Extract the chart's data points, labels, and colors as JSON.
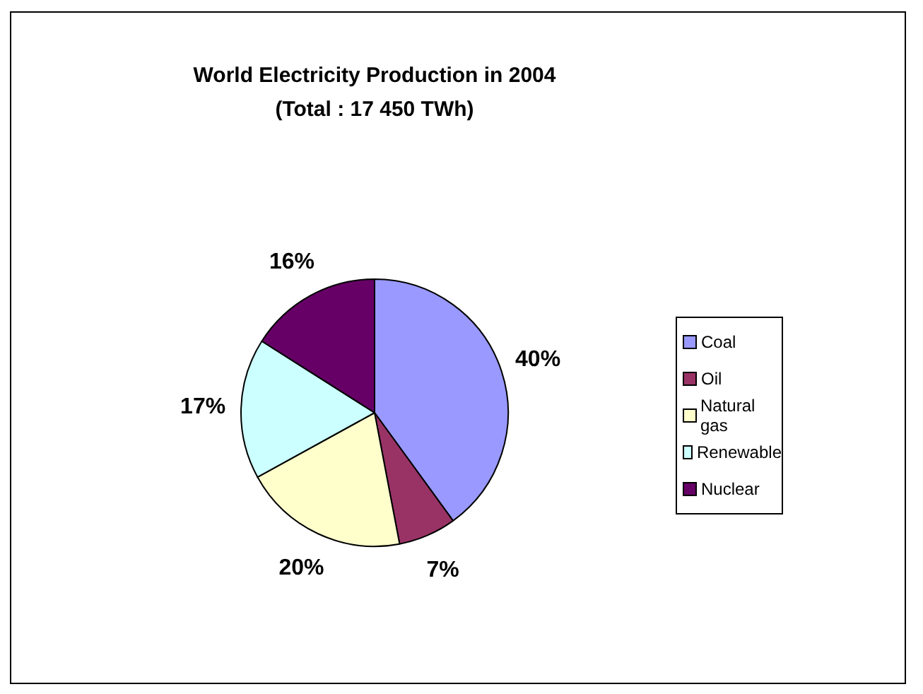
{
  "chart_data": {
    "type": "pie",
    "title": "World Electricity Production in 2004",
    "subtitle": "(Total : 17 450 TWh)",
    "categories": [
      "Coal",
      "Oil",
      "Natural gas",
      "Renewable",
      "Nuclear"
    ],
    "values": [
      40,
      7,
      20,
      17,
      16
    ],
    "value_labels": [
      "40%",
      "7%",
      "20%",
      "17%",
      "16%"
    ],
    "colors": [
      "#9999ff",
      "#993366",
      "#ffffcc",
      "#ccffff",
      "#660066"
    ],
    "legend": "right"
  }
}
